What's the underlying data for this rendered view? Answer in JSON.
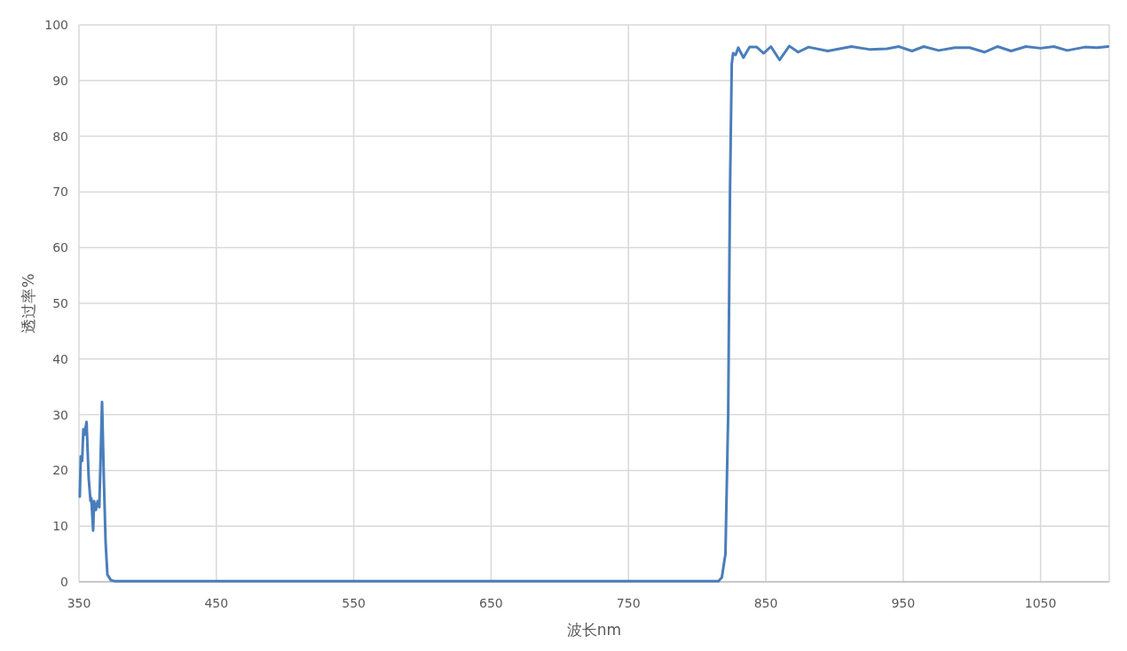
{
  "chart_data": {
    "type": "line",
    "xlabel": "波长nm",
    "ylabel": "透过率%",
    "xlim": [
      350,
      1100
    ],
    "ylim": [
      0,
      100
    ],
    "xticks": [
      350,
      450,
      550,
      650,
      750,
      850,
      950,
      1050,
      {
        "value": 1100,
        "label": null
      }
    ],
    "yticks": [
      0,
      10,
      20,
      30,
      40,
      50,
      60,
      70,
      80,
      90,
      100
    ],
    "grid": true,
    "series": [
      {
        "color": "#4a7ebb",
        "x": [
          350.6,
          351.3,
          352.3,
          353.2,
          354,
          355.5,
          357.1,
          358.4,
          359,
          360.3,
          361,
          362.3,
          363.6,
          364.8,
          366.8,
          368.1,
          369.4,
          370.7,
          373.2,
          376.5,
          450,
          550,
          650,
          750,
          815.5,
          818,
          820.6,
          822.6,
          823.9,
          825.2,
          826.2,
          828,
          829.9,
          833.7,
          838.1,
          843.4,
          848.4,
          853.7,
          860,
          867.1,
          873.5,
          881.1,
          895.1,
          912.3,
          925.2,
          938.1,
          946.7,
          956.4,
          965,
          975.8,
          987.6,
          998.4,
          1009.1,
          1018.8,
          1028.5,
          1039.3,
          1050,
          1059.7,
          1069.4,
          1082.3,
          1090.9,
          1099.1
        ],
        "values": [
          15.3,
          22.5,
          21.7,
          27.4,
          26.4,
          28.7,
          18.5,
          14.5,
          15,
          9.2,
          14.5,
          12.9,
          14.5,
          13.4,
          32.3,
          18.5,
          7,
          1.3,
          0.3,
          0.1,
          0.1,
          0.1,
          0.1,
          0.1,
          0.1,
          0.8,
          5,
          30,
          70,
          93,
          94.9,
          94.6,
          95.9,
          94.1,
          96,
          96,
          94.9,
          96.1,
          93.7,
          96.2,
          95.1,
          96,
          95.3,
          96.1,
          95.6,
          95.7,
          96.1,
          95.3,
          96.1,
          95.4,
          95.9,
          95.9,
          95.1,
          96.1,
          95.3,
          96.1,
          95.8,
          96.1,
          95.4,
          96,
          95.9,
          96.1
        ]
      }
    ]
  }
}
